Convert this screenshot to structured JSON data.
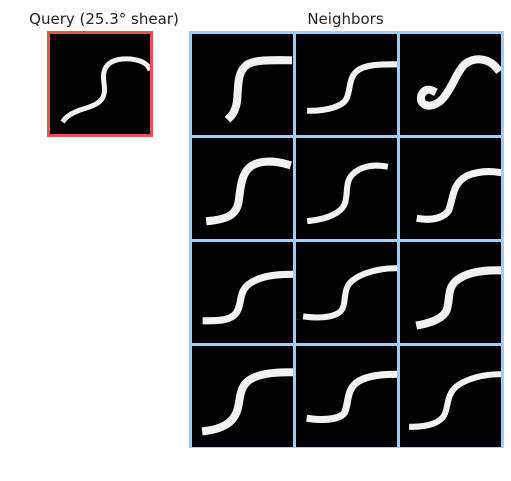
{
  "query": {
    "title": "Query (25.3° shear)"
  },
  "neighbors": {
    "title": "Neighbors",
    "rows": 4,
    "cols": 3
  },
  "colors": {
    "query_border": "#e8524a",
    "neighbor_border": "#9ecdf7",
    "digit_background": "#000000",
    "digit_stroke": "#f2f2f2"
  }
}
